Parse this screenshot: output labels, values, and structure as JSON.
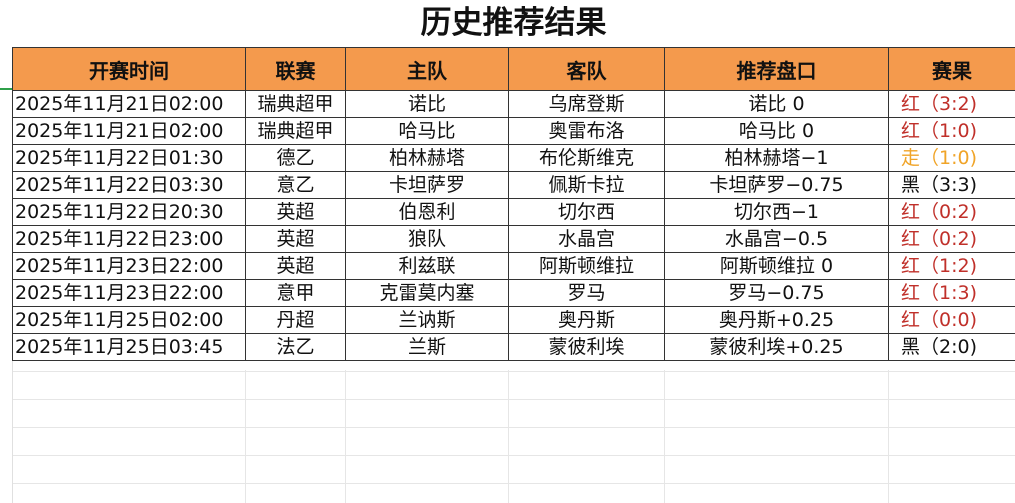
{
  "title": "历史推荐结果",
  "columns": [
    "开赛时间",
    "联赛",
    "主队",
    "客队",
    "推荐盘口",
    "赛果"
  ],
  "result_colors": {
    "红": "#c0302a",
    "走": "#f0a428",
    "黑": "#111111"
  },
  "rows": [
    {
      "time": "2025年11月21日02:00",
      "league": "瑞典超甲",
      "home": "诺比",
      "away": "乌席登斯",
      "pick": "诺比 0",
      "result": "红（3:2)",
      "outcome": "红"
    },
    {
      "time": "2025年11月21日02:00",
      "league": "瑞典超甲",
      "home": "哈马比",
      "away": "奥雷布洛",
      "pick": "哈马比 0",
      "result": "红（1:0)",
      "outcome": "红"
    },
    {
      "time": "2025年11月22日01:30",
      "league": "德乙",
      "home": "柏林赫塔",
      "away": "布伦斯维克",
      "pick": "柏林赫塔−1",
      "result": "走（1:0)",
      "outcome": "走"
    },
    {
      "time": "2025年11月22日03:30",
      "league": "意乙",
      "home": "卡坦萨罗",
      "away": "佩斯卡拉",
      "pick": "卡坦萨罗−0.75",
      "result": "黑（3:3)",
      "outcome": "黑"
    },
    {
      "time": "2025年11月22日20:30",
      "league": "英超",
      "home": "伯恩利",
      "away": "切尔西",
      "pick": "切尔西−1",
      "result": "红（0:2)",
      "outcome": "红"
    },
    {
      "time": "2025年11月22日23:00",
      "league": "英超",
      "home": "狼队",
      "away": "水晶宫",
      "pick": "水晶宫−0.5",
      "result": "红（0:2)",
      "outcome": "红"
    },
    {
      "time": "2025年11月23日22:00",
      "league": "英超",
      "home": "利兹联",
      "away": "阿斯顿维拉",
      "pick": "阿斯顿维拉 0",
      "result": "红（1:2)",
      "outcome": "红"
    },
    {
      "time": "2025年11月23日22:00",
      "league": "意甲",
      "home": "克雷莫内塞",
      "away": "罗马",
      "pick": "罗马−0.75",
      "result": "红（1:3)",
      "outcome": "红"
    },
    {
      "time": "2025年11月25日02:00",
      "league": "丹超",
      "home": "兰讷斯",
      "away": "奥丹斯",
      "pick": "奥丹斯+0.25",
      "result": "红（0:0)",
      "outcome": "红"
    },
    {
      "time": "2025年11月25日03:45",
      "league": "法乙",
      "home": "兰斯",
      "away": "蒙彼利埃",
      "pick": "蒙彼利埃+0.25",
      "result": "黑（2:0)",
      "outcome": "黑"
    }
  ]
}
